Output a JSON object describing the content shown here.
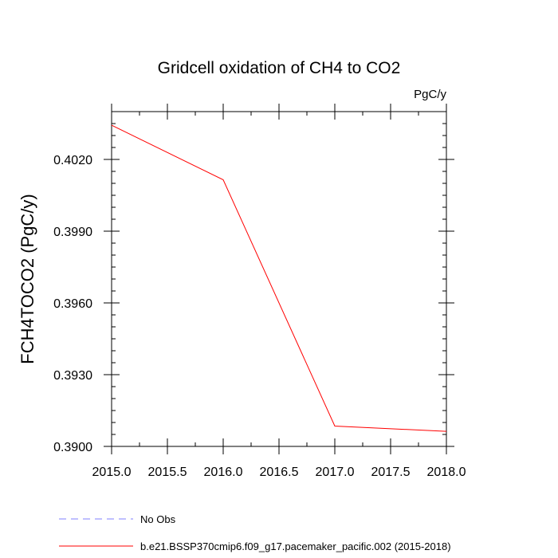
{
  "chart_data": {
    "type": "line",
    "title": "Gridcell oxidation of CH4 to CO2",
    "units": "PgC/y",
    "xlabel": "",
    "ylabel": "FCH4TOCO2  (PgC/y)",
    "xlim": [
      2015.0,
      2018.0
    ],
    "ylim": [
      0.39,
      0.404
    ],
    "x_ticks": [
      2015.0,
      2015.5,
      2016.0,
      2016.5,
      2017.0,
      2017.5,
      2018.0
    ],
    "x_tick_labels": [
      "2015.0",
      "2015.5",
      "2016.0",
      "2016.5",
      "2017.0",
      "2017.5",
      "2018.0"
    ],
    "y_ticks": [
      0.39,
      0.393,
      0.396,
      0.399,
      0.402
    ],
    "y_tick_labels": [
      "0.3900",
      "0.3930",
      "0.3960",
      "0.3990",
      "0.4020"
    ],
    "x_minor_step": 0.25,
    "y_minor_step": 0.0005,
    "grid": false,
    "legend_position": "bottom-left",
    "series": [
      {
        "name": "b.e21.BSSP370cmip6.f09_g17.pacemaker_pacific.002 (2015-2018)",
        "color": "#ff0000",
        "style": "solid",
        "x": [
          2015.0,
          2016.0,
          2017.0,
          2018.0
        ],
        "values": [
          0.40343,
          0.40115,
          0.39085,
          0.39063
        ]
      }
    ],
    "legend": [
      {
        "label": "No Obs",
        "color": "#8080ff",
        "style": "dashed"
      },
      {
        "label": "b.e21.BSSP370cmip6.f09_g17.pacemaker_pacific.002 (2015-2018)",
        "color": "#ff0000",
        "style": "solid"
      }
    ]
  }
}
